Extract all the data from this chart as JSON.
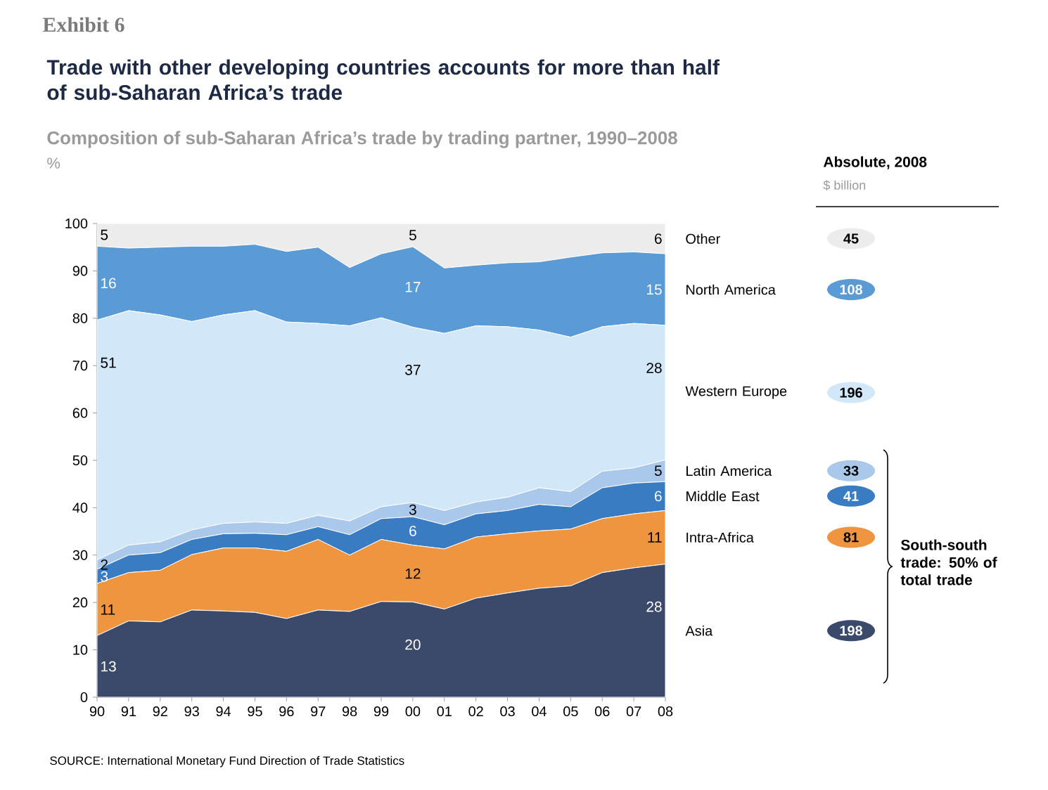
{
  "chart_data": {
    "type": "area",
    "stacked": true,
    "title": "Trade with other developing countries accounts for more than half of sub-Saharan Africa’s trade",
    "subtitle": "Composition of sub-Saharan Africa’s trade by trading partner, 1990–2008",
    "ylabel": "%",
    "categories": [
      "90",
      "91",
      "92",
      "93",
      "94",
      "95",
      "96",
      "97",
      "98",
      "99",
      "00",
      "01",
      "02",
      "03",
      "04",
      "05",
      "06",
      "07",
      "08"
    ],
    "series": [
      {
        "name": "Asia",
        "color": "#3b4a6b",
        "values": [
          13,
          16.1,
          15.9,
          18.4,
          18.2,
          17.9,
          16.6,
          18.4,
          18.1,
          20.2,
          20.1,
          18.6,
          20.9,
          22,
          23,
          23.5,
          26.3,
          27.3,
          28.1
        ],
        "value_labels": [
          "13",
          null,
          null,
          null,
          null,
          null,
          null,
          null,
          null,
          null,
          "20",
          null,
          null,
          null,
          null,
          null,
          null,
          null,
          "28"
        ]
      },
      {
        "name": "Intra-Africa",
        "color": "#f0953f",
        "values": [
          11,
          10.2,
          10.9,
          11.7,
          13.3,
          13.6,
          14.2,
          14.9,
          11.9,
          13.1,
          12,
          12.7,
          12.9,
          12.5,
          12.1,
          12,
          11.4,
          11.4,
          11.3
        ],
        "value_labels": [
          "11",
          null,
          null,
          null,
          null,
          null,
          null,
          null,
          null,
          null,
          "12",
          null,
          null,
          null,
          null,
          null,
          null,
          null,
          "11"
        ]
      },
      {
        "name": "Middle East",
        "color": "#3a7cc2",
        "values": [
          3,
          3.7,
          3.7,
          3.2,
          3,
          3.1,
          3.5,
          2.7,
          4.3,
          4.4,
          6,
          5.1,
          4.9,
          4.9,
          5.6,
          4.7,
          6.5,
          6.5,
          6.1
        ],
        "value_labels": [
          "3",
          null,
          null,
          null,
          null,
          null,
          null,
          null,
          null,
          null,
          "6",
          null,
          null,
          null,
          null,
          null,
          null,
          null,
          "6"
        ]
      },
      {
        "name": "Latin America",
        "color": "#a9c8ea",
        "values": [
          2,
          2.1,
          2.3,
          2,
          2.2,
          2.4,
          2.4,
          2.4,
          2.9,
          2.5,
          3,
          3,
          2.5,
          2.8,
          3.5,
          3.2,
          3.5,
          3.2,
          4.6
        ],
        "value_labels": [
          "2",
          null,
          null,
          null,
          null,
          null,
          null,
          null,
          null,
          null,
          "3",
          null,
          null,
          null,
          null,
          null,
          null,
          null,
          "5"
        ]
      },
      {
        "name": "Western Europe",
        "color": "#d2e8f8",
        "values": [
          50.6,
          49.5,
          47.9,
          44,
          44,
          44.6,
          42.5,
          40.5,
          41.2,
          39.9,
          37,
          37.4,
          37.2,
          36,
          33.3,
          32.6,
          30.5,
          30.5,
          28.4
        ],
        "value_labels": [
          "51",
          null,
          null,
          null,
          null,
          null,
          null,
          null,
          null,
          null,
          "37",
          null,
          null,
          null,
          null,
          null,
          null,
          null,
          "28"
        ]
      },
      {
        "name": "North America",
        "color": "#5b9bd5",
        "values": [
          15.6,
          13.2,
          14.3,
          15.9,
          14.5,
          14,
          14.9,
          16.1,
          12.3,
          13.5,
          17,
          13.8,
          12.8,
          13.5,
          14.4,
          16.9,
          15.6,
          15.1,
          15.1
        ],
        "value_labels": [
          "16",
          null,
          null,
          null,
          null,
          null,
          null,
          null,
          null,
          null,
          "17",
          null,
          null,
          null,
          null,
          null,
          null,
          null,
          "15"
        ]
      },
      {
        "name": "Other",
        "color": "#ececec",
        "values": [
          4.8,
          5.2,
          5,
          4.8,
          4.8,
          4.4,
          5.9,
          5,
          9.3,
          6.4,
          4.9,
          9.4,
          8.8,
          8.3,
          8.1,
          7.1,
          6.2,
          6,
          6.4
        ],
        "value_labels": [
          "5",
          null,
          null,
          null,
          null,
          null,
          null,
          null,
          null,
          null,
          "5",
          null,
          null,
          null,
          null,
          null,
          null,
          null,
          "6"
        ]
      }
    ],
    "ylim": [
      0,
      100
    ],
    "yticks": [
      0,
      10,
      20,
      30,
      40,
      50,
      60,
      70,
      80,
      90,
      100
    ],
    "legend": "right",
    "annotations": [
      "Exhibit 6",
      "Absolute, 2008",
      "$ billion",
      "198",
      "81",
      "41",
      "33",
      "196",
      "108",
      "45",
      "South-south trade: 50% of total trade",
      "SOURCE: International Monetary Fund Direction of Trade Statistics"
    ]
  }
}
